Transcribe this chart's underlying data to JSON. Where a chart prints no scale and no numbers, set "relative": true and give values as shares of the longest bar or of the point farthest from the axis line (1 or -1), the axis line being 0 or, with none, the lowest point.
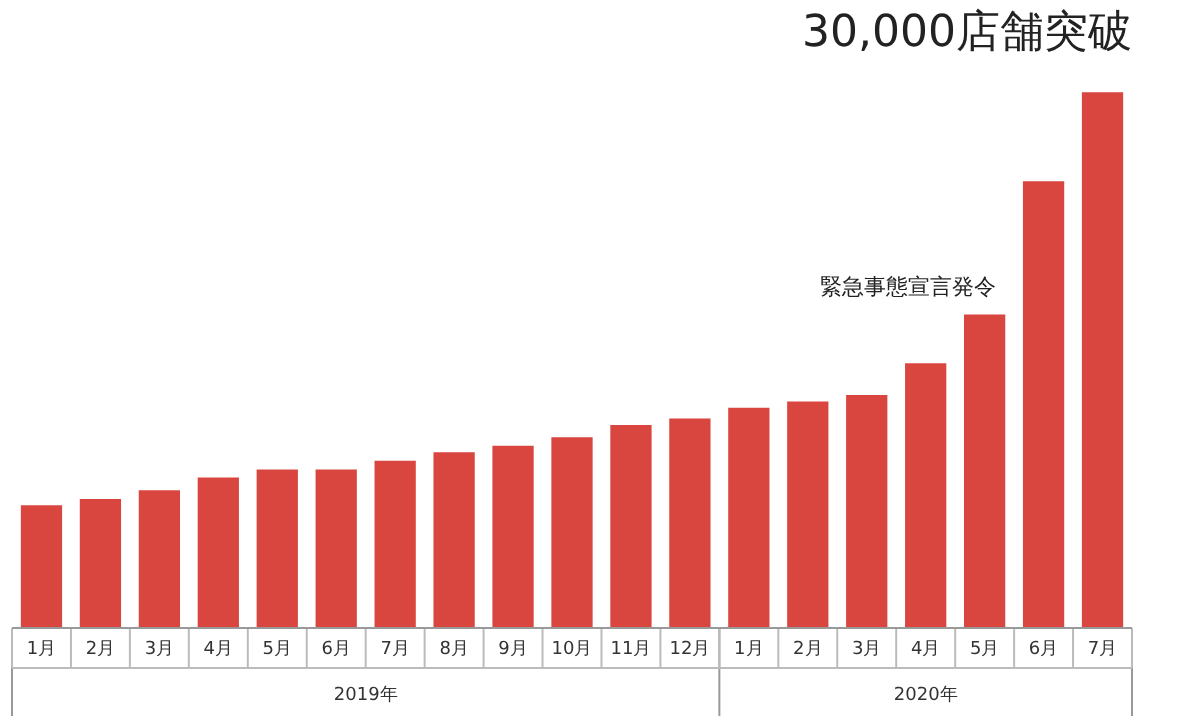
{
  "chart_data": {
    "type": "bar",
    "relative": true,
    "color": "#d9453f",
    "categories": [
      "1月",
      "2月",
      "3月",
      "4月",
      "5月",
      "6月",
      "7月",
      "8月",
      "9月",
      "10月",
      "11月",
      "12月",
      "1月",
      "2月",
      "3月",
      "4月",
      "5月",
      "6月",
      "7月"
    ],
    "values": [
      0.229,
      0.241,
      0.257,
      0.281,
      0.296,
      0.296,
      0.312,
      0.328,
      0.34,
      0.356,
      0.379,
      0.391,
      0.411,
      0.423,
      0.435,
      0.494,
      0.585,
      0.834,
      1
    ],
    "annotations": [
      "30,000店舗突破",
      "緊急事態宣言発令",
      "2019年",
      "2020年"
    ]
  }
}
